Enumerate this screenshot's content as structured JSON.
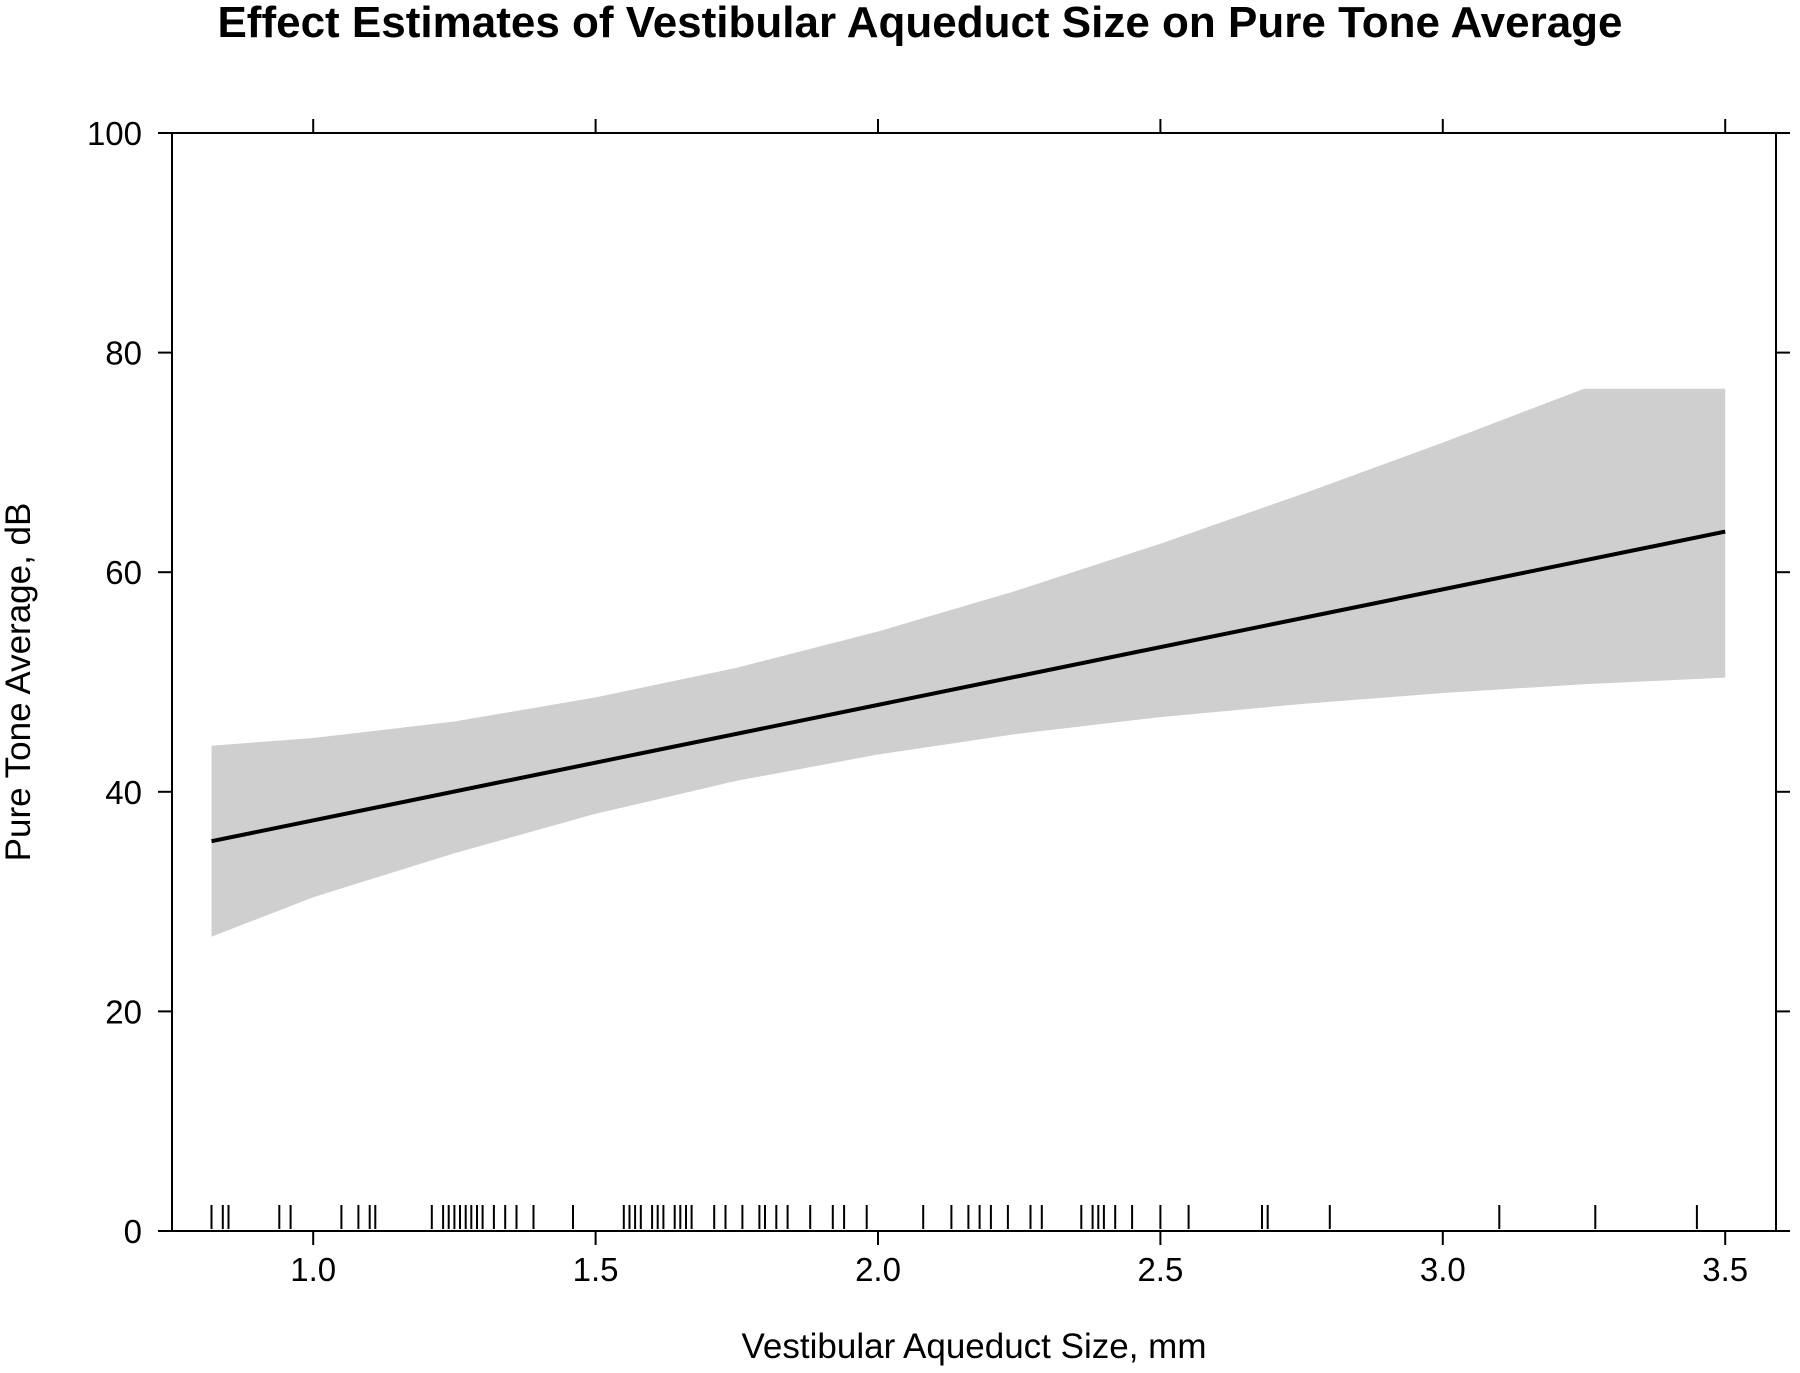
{
  "chart_data": {
    "type": "line",
    "title": "Effect Estimates of Vestibular Aqueduct Size on Pure Tone Average",
    "xlabel": "Vestibular Aqueduct Size, mm",
    "ylabel": "Pure Tone Average, dB",
    "xlim": [
      0.75,
      3.59
    ],
    "ylim": [
      0,
      100
    ],
    "x_ticks": [
      "1.0",
      "1.5",
      "2.0",
      "2.5",
      "3.0",
      "3.5"
    ],
    "y_ticks": [
      "0",
      "20",
      "40",
      "60",
      "80",
      "100"
    ],
    "grid": false,
    "series": [
      {
        "x": [
          0.82,
          3.5
        ],
        "values": [
          35.5,
          63.7
        ]
      }
    ],
    "confidence_band": {
      "x": [
        0.82,
        1.0,
        1.25,
        1.5,
        1.75,
        2.0,
        2.25,
        2.5,
        2.75,
        3.0,
        3.25,
        3.5
      ],
      "upper": [
        44.2,
        44.9,
        46.4,
        48.6,
        51.3,
        54.6,
        58.4,
        62.6,
        67.1,
        71.8,
        76.7,
        76.7
      ],
      "lower": [
        26.8,
        30.4,
        34.4,
        38.0,
        41.0,
        43.4,
        45.3,
        46.8,
        48.0,
        49.0,
        49.8,
        50.4
      ]
    },
    "rug": [
      0.82,
      0.84,
      0.85,
      0.94,
      0.96,
      1.05,
      1.08,
      1.1,
      1.11,
      1.21,
      1.23,
      1.24,
      1.25,
      1.26,
      1.27,
      1.28,
      1.29,
      1.3,
      1.32,
      1.34,
      1.36,
      1.39,
      1.46,
      1.55,
      1.56,
      1.57,
      1.58,
      1.6,
      1.61,
      1.62,
      1.64,
      1.65,
      1.66,
      1.67,
      1.71,
      1.73,
      1.76,
      1.79,
      1.8,
      1.82,
      1.84,
      1.88,
      1.92,
      1.94,
      1.98,
      2.08,
      2.13,
      2.16,
      2.18,
      2.2,
      2.23,
      2.27,
      2.29,
      2.36,
      2.38,
      2.39,
      2.4,
      2.42,
      2.45,
      2.5,
      2.55,
      2.68,
      2.69,
      2.8,
      3.1,
      3.27,
      3.45
    ],
    "colors": {
      "line": "#000000",
      "band": "#cfcfcf"
    }
  }
}
